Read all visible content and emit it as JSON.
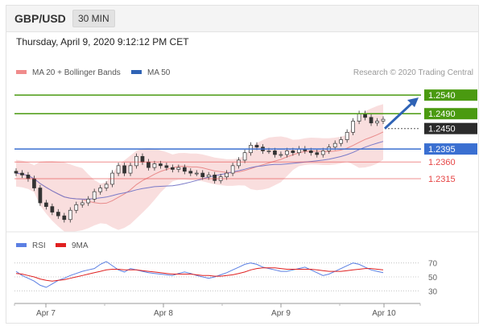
{
  "header": {
    "pair": "GBP/USD",
    "timeframe": "30 MIN"
  },
  "datetime": "Thursday, April 9, 2020 9:12:12 PM CET",
  "legend": {
    "ma20_bb": "MA 20 + Bollinger Bands",
    "ma50": "MA 50",
    "credit": "Research © 2020 Trading Central"
  },
  "rsi_legend": {
    "rsi": "RSI",
    "ma9": "9MA"
  },
  "colors": {
    "resistance": "#4a9a10",
    "support": "#3a6fd1",
    "weak_support": "#e64545",
    "price": "#333333",
    "bb_fill": "#f9dede",
    "ma20": "#e98b8b",
    "ma50": "#7a7ac8",
    "rsi": "#5b7fe3",
    "ma9": "#e02020",
    "arrow": "#2f63b5"
  },
  "chart_data": [
    {
      "type": "candlestick",
      "title": "",
      "x_ticks": [
        "Apr 7",
        "Apr 8",
        "Apr 9",
        "Apr 10"
      ],
      "ylim": [
        1.2185,
        1.2575
      ],
      "close_series": [
        1.233,
        1.2325,
        1.2315,
        1.229,
        1.225,
        1.224,
        1.2225,
        1.2215,
        1.2205,
        1.223,
        1.2245,
        1.225,
        1.226,
        1.228,
        1.229,
        1.23,
        1.233,
        1.235,
        1.233,
        1.235,
        1.2375,
        1.236,
        1.2345,
        1.2355,
        1.235,
        1.2345,
        1.234,
        1.2345,
        1.2335,
        1.233,
        1.233,
        1.232,
        1.2325,
        1.231,
        1.232,
        1.233,
        1.235,
        1.2365,
        1.2385,
        1.2405,
        1.24,
        1.239,
        1.239,
        1.238,
        1.238,
        1.239,
        1.2385,
        1.2395,
        1.239,
        1.2385,
        1.238,
        1.239,
        1.24,
        1.241,
        1.242,
        1.244,
        1.247,
        1.249,
        1.248,
        1.2465,
        1.247,
        1.2475
      ],
      "price_levels": [
        {
          "label": "1.2540",
          "value": 1.254,
          "role": "resistance"
        },
        {
          "label": "1.2490",
          "value": 1.249,
          "role": "resistance"
        },
        {
          "label": "1.2450",
          "value": 1.245,
          "role": "current"
        },
        {
          "label": "1.2395",
          "value": 1.2395,
          "role": "support"
        },
        {
          "label": "1.2360",
          "value": 1.236,
          "role": "support"
        },
        {
          "label": "1.2315",
          "value": 1.2315,
          "role": "support"
        }
      ]
    },
    {
      "type": "line",
      "title": "",
      "x_ticks": [
        "Apr 7",
        "Apr 8",
        "Apr 9",
        "Apr 10"
      ],
      "ylim": [
        20,
        80
      ],
      "y_ticks": [
        70,
        50,
        30
      ],
      "series": [
        {
          "name": "RSI",
          "values": [
            58,
            52,
            48,
            44,
            38,
            35,
            40,
            45,
            48,
            52,
            55,
            58,
            60,
            62,
            68,
            72,
            66,
            60,
            57,
            62,
            60,
            58,
            56,
            55,
            54,
            53,
            52,
            55,
            57,
            55,
            52,
            50,
            48,
            50,
            53,
            56,
            60,
            64,
            68,
            70,
            68,
            64,
            62,
            60,
            58,
            58,
            60,
            62,
            64,
            60,
            56,
            52,
            54,
            58,
            62,
            66,
            70,
            68,
            64,
            60,
            58,
            56
          ]
        },
        {
          "name": "9MA",
          "values": [
            55,
            54,
            52,
            50,
            47,
            45,
            44,
            45,
            46,
            48,
            50,
            52,
            54,
            56,
            58,
            60,
            61,
            61,
            60,
            60,
            60,
            59,
            58,
            57,
            56,
            55,
            54,
            54,
            54,
            54,
            53,
            52,
            52,
            51,
            51,
            52,
            53,
            55,
            57,
            60,
            62,
            63,
            63,
            63,
            62,
            61,
            61,
            61,
            61,
            61,
            60,
            59,
            58,
            58,
            58,
            59,
            60,
            61,
            62,
            62,
            61,
            60
          ]
        }
      ]
    }
  ]
}
